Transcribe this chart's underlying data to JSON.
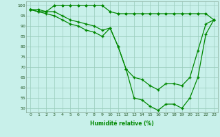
{
  "xlabel": "Humidité relative (%)",
  "xlim": [
    -0.5,
    23.5
  ],
  "ylim": [
    48,
    102
  ],
  "yticks": [
    50,
    55,
    60,
    65,
    70,
    75,
    80,
    85,
    90,
    95,
    100
  ],
  "xticks": [
    0,
    1,
    2,
    3,
    4,
    5,
    6,
    7,
    8,
    9,
    10,
    11,
    12,
    13,
    14,
    15,
    16,
    17,
    18,
    19,
    20,
    21,
    22,
    23
  ],
  "background_color": "#c8f0ea",
  "grid_color": "#99ccbb",
  "line_color": "#008800",
  "line1_x": [
    0,
    1,
    2,
    3,
    4,
    5,
    6,
    7,
    8,
    9,
    10,
    11,
    12,
    13,
    14,
    15,
    16,
    17,
    18,
    19,
    20,
    21,
    22,
    23
  ],
  "line1_y": [
    98,
    98,
    97,
    100,
    100,
    100,
    100,
    100,
    100,
    100,
    97,
    96,
    96,
    96,
    96,
    96,
    96,
    96,
    96,
    96,
    96,
    96,
    96,
    93
  ],
  "line2_x": [
    0,
    1,
    2,
    3,
    4,
    5,
    6,
    7,
    8,
    9,
    10,
    11,
    12,
    13,
    14,
    15,
    16,
    17,
    18,
    19,
    20,
    21,
    22,
    23
  ],
  "line2_y": [
    98,
    97,
    97,
    97,
    95,
    93,
    92,
    91,
    90,
    88,
    89,
    80,
    69,
    65,
    64,
    61,
    59,
    62,
    62,
    61,
    65,
    78,
    91,
    93
  ],
  "line3_x": [
    0,
    1,
    2,
    3,
    4,
    5,
    6,
    7,
    8,
    9,
    10,
    11,
    12,
    13,
    14,
    15,
    16,
    17,
    18,
    19,
    20,
    21,
    22,
    23
  ],
  "line3_y": [
    98,
    97,
    96,
    95,
    93,
    91,
    90,
    88,
    87,
    85,
    89,
    80,
    69,
    55,
    54,
    51,
    49,
    52,
    52,
    50,
    55,
    65,
    86,
    93
  ]
}
